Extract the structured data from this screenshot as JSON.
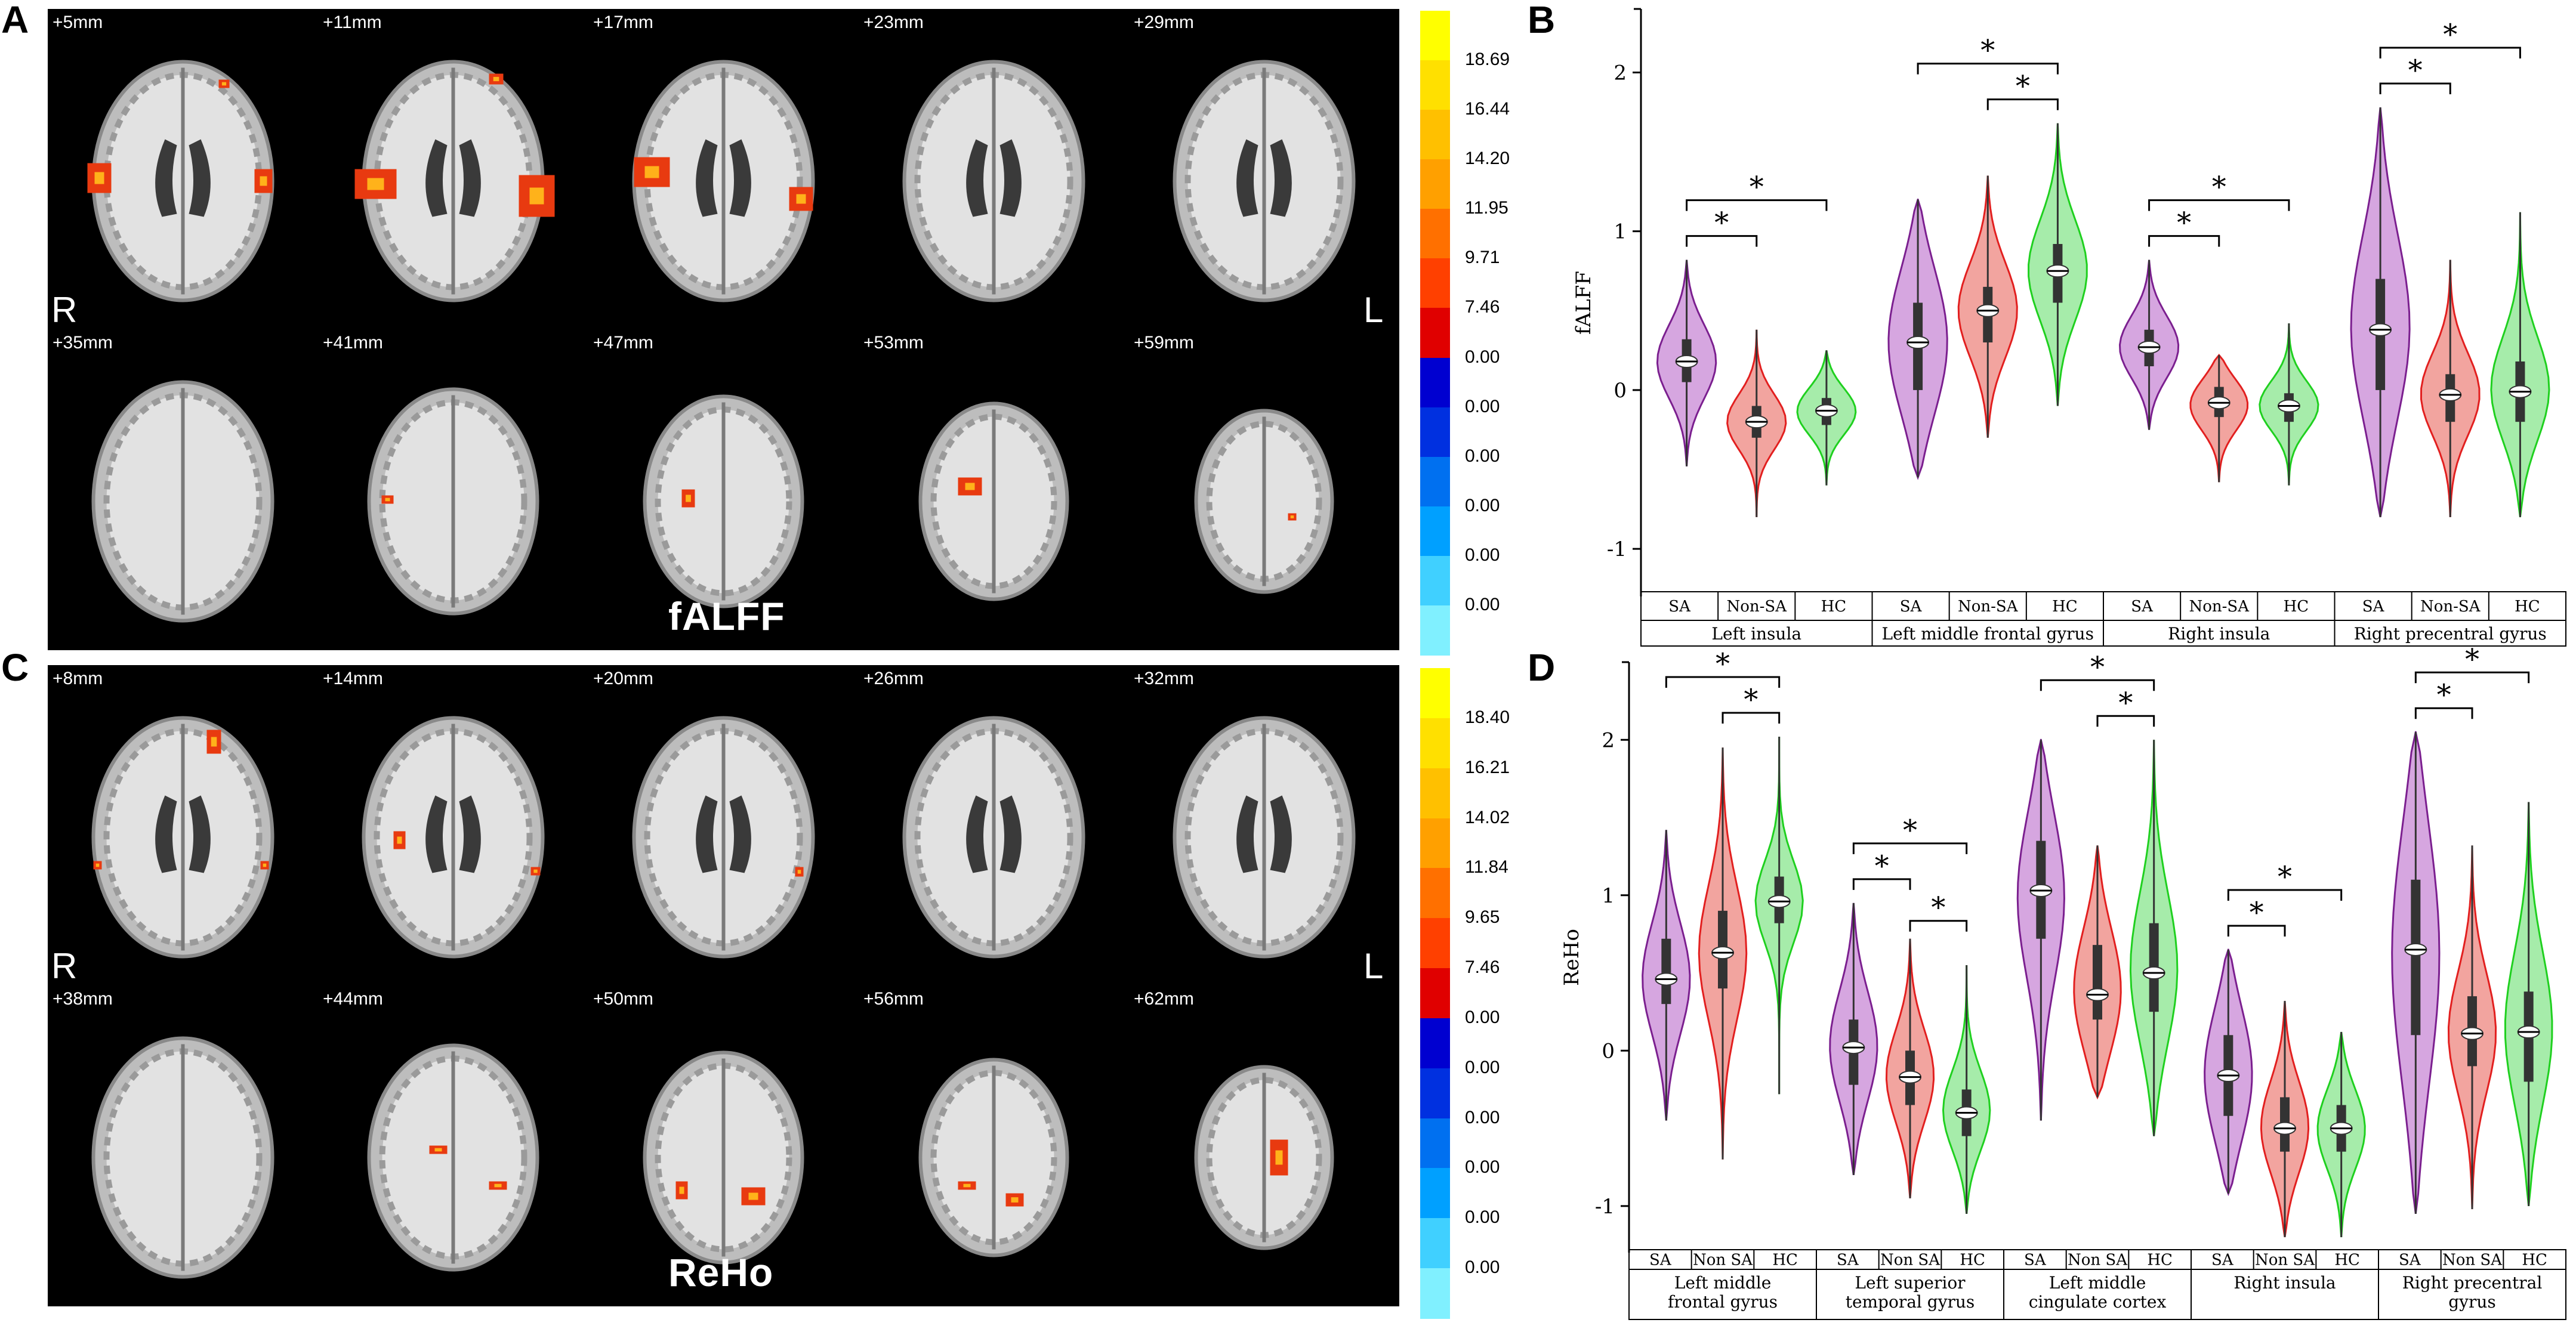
{
  "panels": {
    "A": "A",
    "B": "B",
    "C": "C",
    "D": "D"
  },
  "brain_top": {
    "title": "fALFF",
    "side_right": "R",
    "side_left": "L",
    "slices": [
      "+5mm",
      "+11mm",
      "+17mm",
      "+23mm",
      "+29mm",
      "+35mm",
      "+41mm",
      "+47mm",
      "+53mm",
      "+59mm"
    ],
    "colorbar_labels": [
      "18.69",
      "16.44",
      "14.20",
      "11.95",
      "9.71",
      "7.46",
      "0.00",
      "0.00",
      "0.00",
      "0.00",
      "0.00",
      "0.00"
    ]
  },
  "brain_bottom": {
    "title": "ReHo",
    "side_right": "R",
    "side_left": "L",
    "slices": [
      "+8mm",
      "+14mm",
      "+20mm",
      "+26mm",
      "+32mm",
      "+38mm",
      "+44mm",
      "+50mm",
      "+56mm",
      "+62mm"
    ],
    "colorbar_labels": [
      "18.40",
      "16.21",
      "14.02",
      "11.84",
      "9.65",
      "7.46",
      "0.00",
      "0.00",
      "0.00",
      "0.00",
      "0.00",
      "0.00"
    ]
  },
  "colors": {
    "SA": "#7b1f8f",
    "SA_fill": "#d6a6e0",
    "NonSA": "#e21f1f",
    "NonSA_fill": "#f2a49f",
    "HC": "#1fd01f",
    "HC_fill": "#a6ecaa"
  },
  "chart_data": [
    {
      "type": "violin",
      "panel": "B",
      "ylabel": "fALFF",
      "ylim": [
        -1.3,
        2.4
      ],
      "yticks": [
        "-1",
        "0",
        "1",
        "2"
      ],
      "group_labels_short": [
        "SA",
        "Non-SA",
        "HC"
      ],
      "regions": [
        {
          "name": "Left insula",
          "groups": [
            {
              "group": "SA",
              "median": 0.18,
              "q1": 0.05,
              "q3": 0.32,
              "min": -0.48,
              "max": 0.82
            },
            {
              "group": "Non-SA",
              "median": -0.2,
              "q1": -0.3,
              "q3": -0.1,
              "min": -0.8,
              "max": 0.38
            },
            {
              "group": "HC",
              "median": -0.13,
              "q1": -0.22,
              "q3": -0.05,
              "min": -0.6,
              "max": 0.25
            }
          ],
          "sig": [
            "*",
            "*"
          ]
        },
        {
          "name": "Left middle frontal gyrus",
          "groups": [
            {
              "group": "SA",
              "median": 0.3,
              "q1": 0.0,
              "q3": 0.55,
              "min": -0.55,
              "max": 1.2
            },
            {
              "group": "Non-SA",
              "median": 0.5,
              "q1": 0.3,
              "q3": 0.65,
              "min": -0.3,
              "max": 1.35
            },
            {
              "group": "HC",
              "median": 0.75,
              "q1": 0.55,
              "q3": 0.92,
              "min": -0.1,
              "max": 1.68
            }
          ],
          "sig": [
            "*",
            "*"
          ]
        },
        {
          "name": "Right insula",
          "groups": [
            {
              "group": "SA",
              "median": 0.27,
              "q1": 0.15,
              "q3": 0.38,
              "min": -0.25,
              "max": 0.82
            },
            {
              "group": "Non-SA",
              "median": -0.08,
              "q1": -0.17,
              "q3": 0.02,
              "min": -0.58,
              "max": 0.22
            },
            {
              "group": "HC",
              "median": -0.1,
              "q1": -0.2,
              "q3": -0.02,
              "min": -0.6,
              "max": 0.42
            }
          ],
          "sig": [
            "*",
            "*"
          ]
        },
        {
          "name": "Right precentral gyrus",
          "groups": [
            {
              "group": "SA",
              "median": 0.38,
              "q1": 0.0,
              "q3": 0.7,
              "min": -0.8,
              "max": 1.78
            },
            {
              "group": "Non-SA",
              "median": -0.03,
              "q1": -0.2,
              "q3": 0.1,
              "min": -0.8,
              "max": 0.82
            },
            {
              "group": "HC",
              "median": -0.01,
              "q1": -0.2,
              "q3": 0.18,
              "min": -0.8,
              "max": 1.12
            }
          ],
          "sig": [
            "*",
            "*"
          ]
        }
      ]
    },
    {
      "type": "violin",
      "panel": "D",
      "ylabel": "ReHo",
      "ylim": [
        -1.3,
        2.5
      ],
      "yticks": [
        "-1",
        "0",
        "1",
        "2"
      ],
      "group_labels_short": [
        "SA",
        "Non SA",
        "HC"
      ],
      "regions": [
        {
          "name": "Left middle frontal gyrus",
          "name_lines": [
            "Left middle",
            "frontal gyrus"
          ],
          "groups": [
            {
              "group": "SA",
              "median": 0.46,
              "q1": 0.3,
              "q3": 0.72,
              "min": -0.45,
              "max": 1.42
            },
            {
              "group": "Non SA",
              "median": 0.63,
              "q1": 0.4,
              "q3": 0.9,
              "min": -0.7,
              "max": 1.95
            },
            {
              "group": "HC",
              "median": 0.96,
              "q1": 0.82,
              "q3": 1.12,
              "min": -0.28,
              "max": 2.02
            }
          ],
          "sig": [
            "*",
            "*"
          ]
        },
        {
          "name": "Left superior temporal gyrus",
          "name_lines": [
            "Left superior",
            "temporal gyrus"
          ],
          "groups": [
            {
              "group": "SA",
              "median": 0.02,
              "q1": -0.22,
              "q3": 0.2,
              "min": -0.8,
              "max": 0.95
            },
            {
              "group": "Non SA",
              "median": -0.17,
              "q1": -0.35,
              "q3": 0.0,
              "min": -0.95,
              "max": 0.72
            },
            {
              "group": "HC",
              "median": -0.4,
              "q1": -0.55,
              "q3": -0.25,
              "min": -1.05,
              "max": 0.55
            }
          ],
          "sig": [
            "*",
            "*",
            "*"
          ]
        },
        {
          "name": "Left middle cingulate cortex",
          "name_lines": [
            "Left middle",
            "cingulate cortex"
          ],
          "groups": [
            {
              "group": "SA",
              "median": 1.03,
              "q1": 0.72,
              "q3": 1.35,
              "min": -0.45,
              "max": 2.0
            },
            {
              "group": "Non SA",
              "median": 0.36,
              "q1": 0.2,
              "q3": 0.68,
              "min": -0.3,
              "max": 1.32
            },
            {
              "group": "HC",
              "median": 0.5,
              "q1": 0.25,
              "q3": 0.82,
              "min": -0.55,
              "max": 2.0
            }
          ],
          "sig": [
            "*",
            "*"
          ]
        },
        {
          "name": "Right insula",
          "name_lines": [
            "Right insula"
          ],
          "groups": [
            {
              "group": "SA",
              "median": -0.16,
              "q1": -0.42,
              "q3": 0.1,
              "min": -0.92,
              "max": 0.65
            },
            {
              "group": "Non SA",
              "median": -0.5,
              "q1": -0.65,
              "q3": -0.3,
              "min": -1.2,
              "max": 0.32
            },
            {
              "group": "HC",
              "median": -0.5,
              "q1": -0.65,
              "q3": -0.35,
              "min": -1.2,
              "max": 0.12
            }
          ],
          "sig": [
            "*",
            "*"
          ]
        },
        {
          "name": "Right precentral gyrus",
          "name_lines": [
            "Right precentral",
            "gyrus"
          ],
          "groups": [
            {
              "group": "SA",
              "median": 0.65,
              "q1": 0.1,
              "q3": 1.1,
              "min": -1.05,
              "max": 2.05
            },
            {
              "group": "Non SA",
              "median": 0.11,
              "q1": -0.1,
              "q3": 0.35,
              "min": -1.02,
              "max": 1.32
            },
            {
              "group": "HC",
              "median": 0.12,
              "q1": -0.2,
              "q3": 0.38,
              "min": -1.0,
              "max": 1.6
            }
          ],
          "sig": [
            "*",
            "*"
          ]
        }
      ]
    }
  ]
}
